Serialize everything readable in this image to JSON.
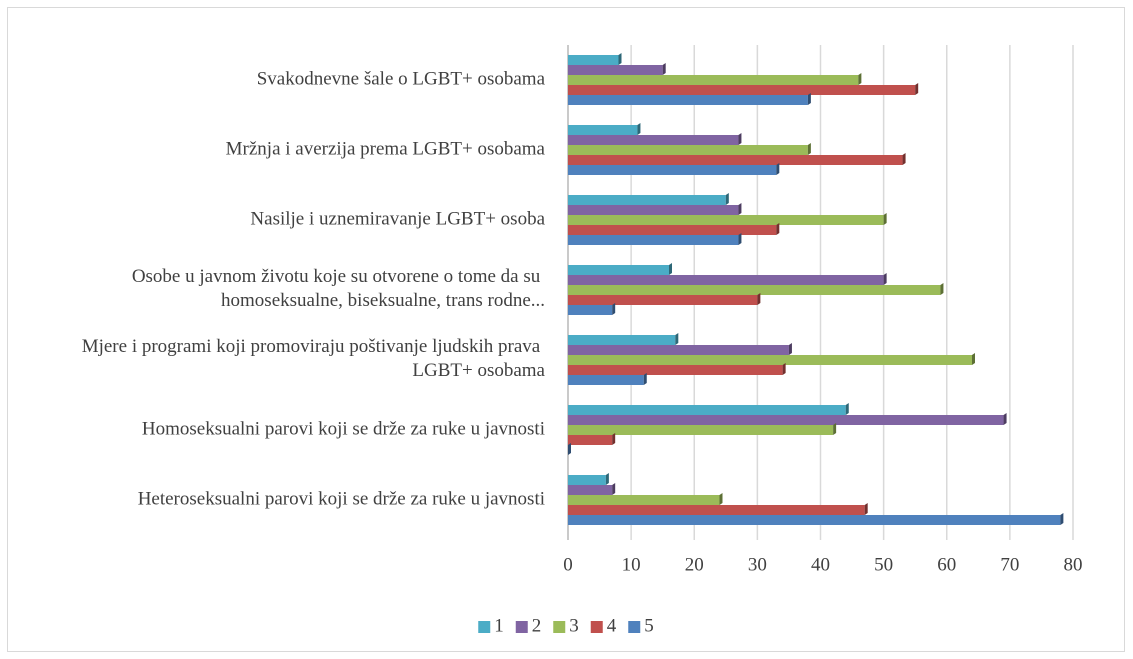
{
  "chart_data": {
    "type": "hbar",
    "categories": [
      "Svakodnevne šale o LGBT+ osobama",
      "Mržnja i averzija prema LGBT+ osobama",
      "Nasilje i uznemiravanje LGBT+ osoba",
      "Osobe u javnom životu koje su otvorene o tome da su homoseksualne, biseksualne, trans rodne...",
      "Mjere i programi koji promoviraju poštivanje ljudskih prava LGBT+ osobama",
      "Homoseksualni parovi koji se drže za ruke u javnosti",
      "Heteroseksualni parovi koji se drže za ruke u javnosti"
    ],
    "series": [
      {
        "name": "1",
        "color": "#4bacc6",
        "values": [
          8,
          11,
          25,
          16,
          17,
          44,
          6
        ]
      },
      {
        "name": "2",
        "color": "#8064a2",
        "values": [
          15,
          27,
          27,
          50,
          35,
          69,
          7
        ]
      },
      {
        "name": "3",
        "color": "#9bbb59",
        "values": [
          46,
          38,
          50,
          59,
          64,
          42,
          24
        ]
      },
      {
        "name": "4",
        "color": "#c0504d",
        "values": [
          55,
          53,
          33,
          30,
          34,
          7,
          47
        ]
      },
      {
        "name": "5",
        "color": "#4f81bd",
        "values": [
          38,
          33,
          27,
          7,
          12,
          0,
          78
        ]
      }
    ],
    "xlim": [
      0,
      80
    ],
    "xticks": [
      0,
      10,
      20,
      30,
      40,
      50,
      60,
      70,
      80
    ],
    "grid": true,
    "legend": "bottom"
  }
}
